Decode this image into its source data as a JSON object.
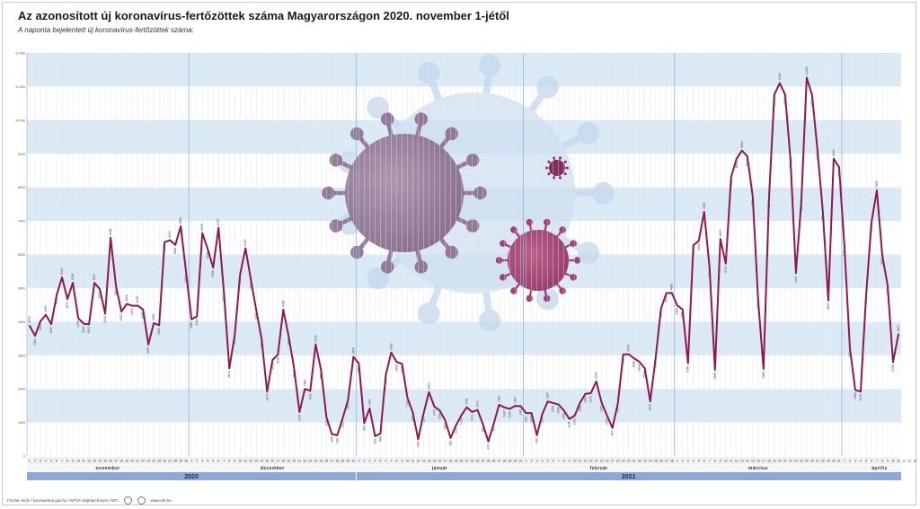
{
  "title": "Az azonosított új koronavírus-fertőzöttek száma Magyarországon 2020. november 1-jétől",
  "subtitle": "A naponta bejelentett új koronavírus-fertőzöttek száma:",
  "footer": {
    "source": "Forrás: ecdc / koronavirus.gov.hu / MTVA Sajtóarchívum / MTI",
    "site": "www.mti.hu"
  },
  "colors": {
    "line": "#8b1a4f",
    "band": "#dceaf6",
    "axis_bar": "#8ea7d6",
    "separator": "#9ab0cf"
  },
  "illustration": "coronavirus-particles",
  "chart_data": {
    "type": "line",
    "title": "Az azonosított új koronavírus-fertőzöttek száma Magyarországon 2020. november 1-jétől",
    "subtitle": "A naponta bejelentett új koronavírus-fertőzöttek száma:",
    "x_start": "2020-11-01",
    "x_end": "2021-04-14",
    "ylim": [
      0,
      12000
    ],
    "yticks": [
      0,
      1000,
      2000,
      3000,
      4000,
      5000,
      6000,
      7000,
      8000,
      9000,
      10000,
      11000,
      12000
    ],
    "grid": true,
    "years": [
      "2020",
      "2021"
    ],
    "months": [
      {
        "name": "november",
        "days": 30
      },
      {
        "name": "december",
        "days": 31
      },
      {
        "name": "január",
        "days": 31
      },
      {
        "name": "február",
        "days": 28
      },
      {
        "name": "március",
        "days": 31
      },
      {
        "name": "április",
        "days": 14
      }
    ],
    "series": [
      {
        "values": [
          3879,
          3581,
          4012,
          4203,
          3926,
          4790,
          5319,
          4673,
          5158,
          4108,
          3940,
          3918,
          5157,
          4970,
          4240,
          6496,
          5063,
          4303,
          4528,
          4474,
          4478,
          4365,
          3320,
          3955,
          3893,
          6368,
          6427,
          6286,
          6839,
          5452,
          4069,
          4159,
          6638,
          6164,
          5606,
          6797,
          4877,
          2614,
          3591,
          5404,
          6187,
          5247,
          4338,
          3473,
          1913,
          2856,
          3018,
          4358,
          3566,
          2617,
          1310,
          1998,
          1941,
          3323,
          2559,
          1159,
          655,
          618,
          1120,
          1670,
          2955,
          2758,
          980,
          1418,
          593,
          668,
          2412,
          3082,
          2802,
          2748,
          1738,
          1297,
          499,
          1270,
          1903,
          1473,
          1354,
          1062,
          538,
          910,
          1210,
          1451,
          1313,
          1372,
          944,
          433,
          965,
          1525,
          1447,
          1405,
          1494,
          1483,
          1281,
          1278,
          620,
          1250,
          1624,
          1579,
          1536,
          1358,
          1106,
          1203,
          1588,
          1852,
          1872,
          2222,
          1587,
          1207,
          837,
          1564,
          3023,
          3030,
          2908,
          2804,
          2608,
          1626,
          2913,
          4392,
          4852,
          4859,
          4485,
          4365,
          2760,
          6278,
          6410,
          7269,
          5604,
          2566,
          6463,
          5732,
          8312,
          8851,
          9094,
          8920,
          7725,
          4638,
          2595,
          7628,
          10759,
          11102,
          10757,
          8823,
          5447,
          7567,
          11265,
          10742,
          9100,
          7252,
          4633,
          8853,
          8600,
          6228,
          3218,
          1968,
          1918,
          4763,
          6961,
          7909,
          5978,
          5077,
          2798,
          3627
        ]
      }
    ]
  }
}
